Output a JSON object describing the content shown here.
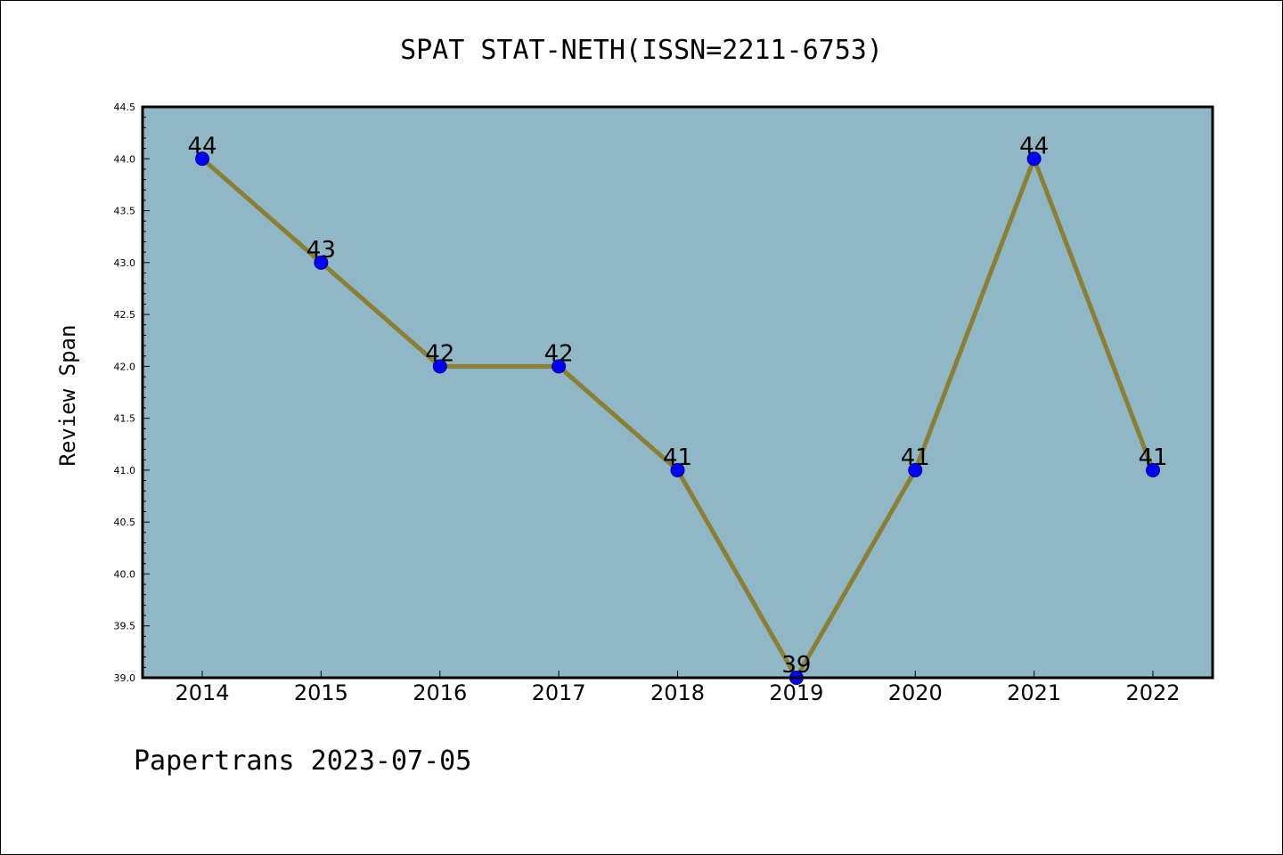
{
  "chart_data": {
    "type": "line",
    "title": "SPAT STAT-NETH(ISSN=2211-6753)",
    "ylabel": "Review Span",
    "xlabel": "",
    "footer": "Papertrans 2023-07-05",
    "x": [
      "2014",
      "2015",
      "2016",
      "2017",
      "2018",
      "2019",
      "2020",
      "2021",
      "2022"
    ],
    "series": [
      {
        "values": [
          44,
          43,
          42,
          42,
          41,
          39,
          41,
          44,
          41
        ]
      }
    ],
    "data_labels": [
      "44",
      "43",
      "42",
      "42",
      "41",
      "39",
      "41",
      "44",
      "41"
    ],
    "ylim": [
      39.0,
      44.5
    ],
    "yticks": [
      "39.0",
      "39.5",
      "40.0",
      "40.5",
      "41.0",
      "41.5",
      "42.0",
      "42.5",
      "43.0",
      "43.5",
      "44.0",
      "44.5"
    ],
    "grid": false,
    "legend": "none",
    "colors": {
      "plot_background": "#8fb7c5",
      "line": "#8a7f33",
      "marker": "#0000ff",
      "marker_edge": "#000080"
    }
  }
}
